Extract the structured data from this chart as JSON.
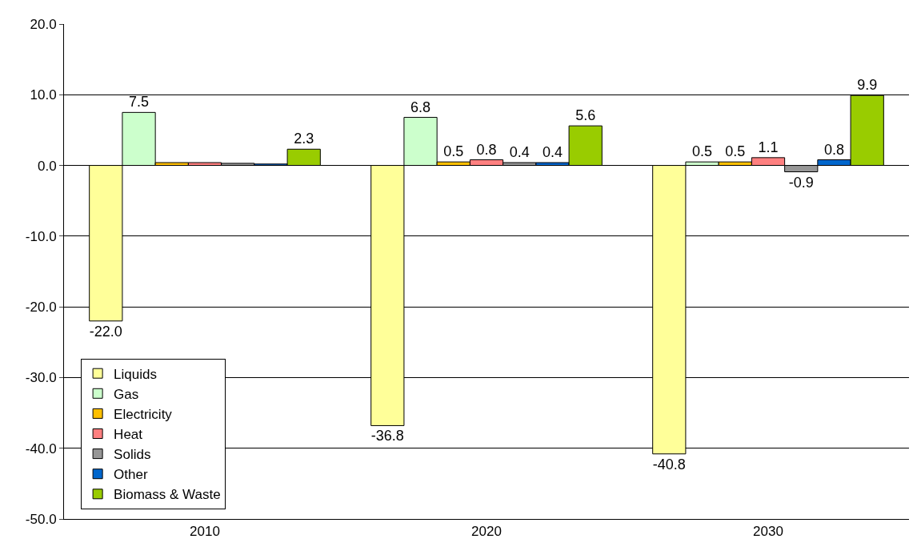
{
  "chart_data": {
    "type": "bar",
    "categories": [
      "2010",
      "2020",
      "2030"
    ],
    "series": [
      {
        "name": "Liquids",
        "color": "#ffff99",
        "values": [
          -22.0,
          -36.8,
          -40.8
        ],
        "value_labels": [
          "-22.0",
          "-36.8",
          "-40.8"
        ]
      },
      {
        "name": "Gas",
        "color": "#ccffcc",
        "values": [
          7.5,
          6.8,
          0.5
        ],
        "value_labels": [
          "7.5",
          "6.8",
          "0.5"
        ]
      },
      {
        "name": "Electricity",
        "color": "#ffc000",
        "values": [
          0.4,
          0.5,
          0.5
        ],
        "value_labels": [
          null,
          "0.5",
          "0.5"
        ]
      },
      {
        "name": "Heat",
        "color": "#ff8080",
        "values": [
          0.4,
          0.8,
          1.1
        ],
        "value_labels": [
          null,
          "0.8",
          "1.1"
        ]
      },
      {
        "name": "Solids",
        "color": "#969696",
        "values": [
          0.3,
          0.4,
          -0.9
        ],
        "value_labels": [
          null,
          "0.4",
          "-0.9"
        ]
      },
      {
        "name": "Other",
        "color": "#0066cc",
        "values": [
          0.2,
          0.4,
          0.8
        ],
        "value_labels": [
          null,
          "0.4",
          "0.8"
        ]
      },
      {
        "name": "Biomass & Waste",
        "color": "#99cc00",
        "values": [
          2.3,
          5.6,
          9.9
        ],
        "value_labels": [
          "2.3",
          "5.6",
          "9.9"
        ]
      }
    ],
    "ylim": [
      -50,
      20
    ],
    "yticks": [
      {
        "value": -50,
        "label": "-50.0"
      },
      {
        "value": -40,
        "label": "-40.0"
      },
      {
        "value": -30,
        "label": "-30.0"
      },
      {
        "value": -20,
        "label": "-20.0"
      },
      {
        "value": -10,
        "label": "-10.0"
      },
      {
        "value": 0,
        "label": "0.0"
      },
      {
        "value": 10,
        "label": "10.0"
      },
      {
        "value": 20,
        "label": "20.0"
      }
    ],
    "grid": "y",
    "legend": "bottom left"
  }
}
